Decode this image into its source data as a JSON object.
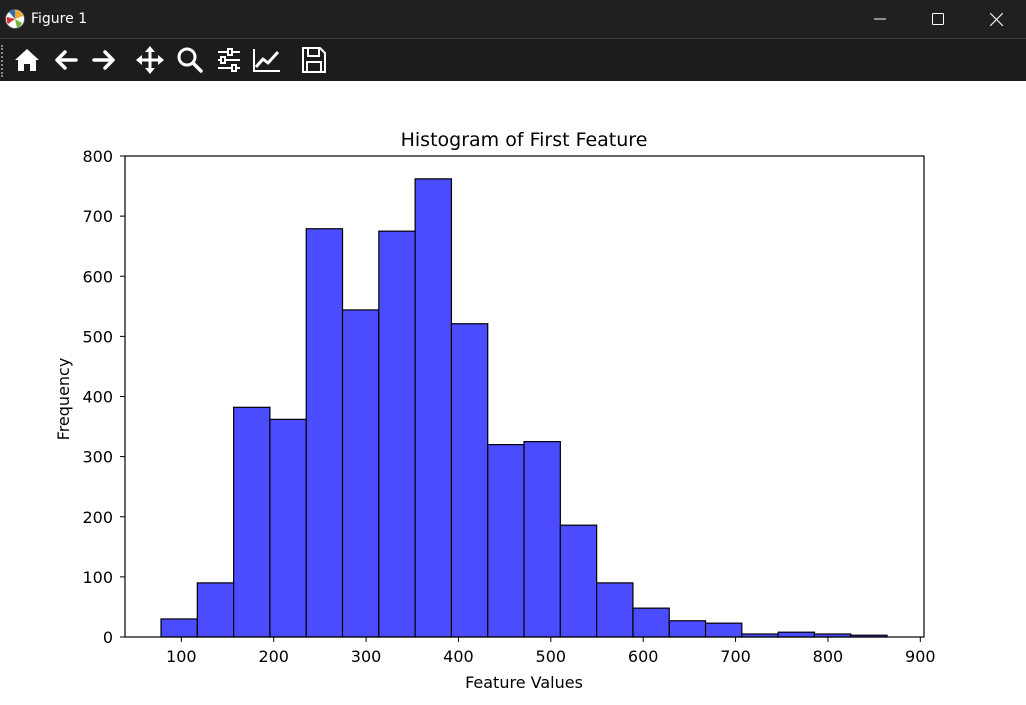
{
  "window": {
    "title": "Figure 1",
    "controls": [
      "minimize",
      "maximize",
      "close"
    ]
  },
  "toolbar": {
    "buttons": [
      {
        "name": "home",
        "icon": "home-icon"
      },
      {
        "name": "back",
        "icon": "arrow-left-icon"
      },
      {
        "name": "forward",
        "icon": "arrow-right-icon"
      },
      {
        "name": "pan",
        "icon": "move-icon"
      },
      {
        "name": "zoom",
        "icon": "magnifier-icon"
      },
      {
        "name": "configure-subplots",
        "icon": "sliders-icon"
      },
      {
        "name": "edit-axis",
        "icon": "line-chart-icon"
      },
      {
        "name": "save",
        "icon": "floppy-disk-icon"
      }
    ]
  },
  "chart_data": {
    "type": "bar",
    "title": "Histogram of First Feature",
    "xlabel": "Feature Values",
    "ylabel": "Frequency",
    "xlim": [
      39,
      904
    ],
    "ylim": [
      0,
      800
    ],
    "x_ticks": [
      100,
      200,
      300,
      400,
      500,
      600,
      700,
      800,
      900
    ],
    "y_ticks": [
      0,
      100,
      200,
      300,
      400,
      500,
      600,
      700,
      800
    ],
    "bin_edges": [
      78,
      117.3,
      156.6,
      195.9,
      235.2,
      274.5,
      313.8,
      353.1,
      392.4,
      431.7,
      471,
      510.3,
      549.6,
      588.9,
      628.2,
      667.5,
      706.8,
      746.1,
      785.4,
      824.7,
      864
    ],
    "values": [
      30,
      90,
      382,
      362,
      679,
      544,
      675,
      762,
      521,
      320,
      325,
      186,
      90,
      48,
      27,
      23,
      5,
      8,
      5,
      3
    ],
    "bar_color": "#4c4cff",
    "edge_color": "#000000",
    "grid": false
  }
}
